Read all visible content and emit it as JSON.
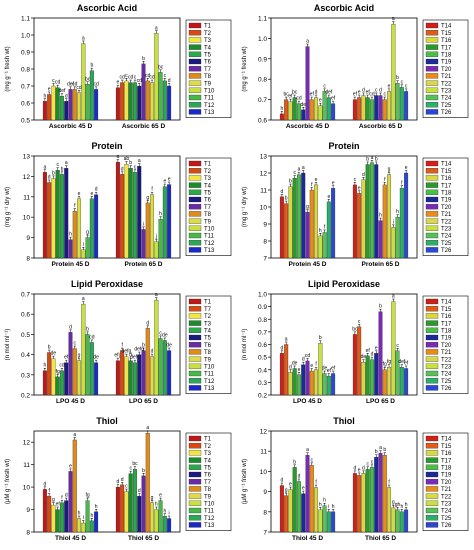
{
  "palette_a": [
    "#c01818",
    "#d84a10",
    "#f3e640",
    "#1a8c2a",
    "#2aa84a",
    "#1a1a80",
    "#6a2aa8",
    "#e08a1a",
    "#dcdc48",
    "#c8e040",
    "#48b848",
    "#2aa858",
    "#1a2ac8"
  ],
  "palette_b": [
    "#d02018",
    "#e05a18",
    "#d8d840",
    "#2a9a2a",
    "#48c048",
    "#1a2a9a",
    "#7a2ab8",
    "#ea8a18",
    "#d8d848",
    "#c8e040",
    "#58c058",
    "#2ab068",
    "#2a48d0"
  ],
  "chart_data": [
    {
      "type": "bar",
      "title": "Ascorbic Acid",
      "ylabel": "(mg g⁻¹ fresh wt)",
      "ylim": [
        0.5,
        1.1
      ],
      "yticks": [
        "0.5",
        "0.6",
        "0.7",
        "0.8",
        "0.9",
        "1.0",
        "1.1"
      ],
      "grid": false,
      "legend": "top-right",
      "categories": [
        "Ascorbic 45 D",
        "Ascorbic 65 D"
      ],
      "series": [
        {
          "name": "T1",
          "values": [
            0.61,
            0.69
          ]
        },
        {
          "name": "T2",
          "values": [
            0.65,
            0.72
          ]
        },
        {
          "name": "T3",
          "values": [
            0.7,
            0.73
          ]
        },
        {
          "name": "T4",
          "values": [
            0.69,
            0.72
          ]
        },
        {
          "name": "T5",
          "values": [
            0.64,
            0.72
          ]
        },
        {
          "name": "T6",
          "values": [
            0.61,
            0.7
          ]
        },
        {
          "name": "T7",
          "values": [
            0.68,
            0.83
          ]
        },
        {
          "name": "T8",
          "values": [
            0.68,
            0.73
          ]
        },
        {
          "name": "T9",
          "values": [
            0.66,
            0.72
          ]
        },
        {
          "name": "T10",
          "values": [
            0.95,
            1.01
          ]
        },
        {
          "name": "T11",
          "values": [
            0.71,
            0.78
          ]
        },
        {
          "name": "T12",
          "values": [
            0.79,
            0.73
          ]
        },
        {
          "name": "T13",
          "values": [
            0.68,
            0.7
          ]
        }
      ],
      "letters": [
        [
          "h",
          "e",
          "c",
          "cd",
          "def",
          "d",
          "def",
          "cd",
          "cd",
          "a",
          "bc",
          "b",
          "cd"
        ],
        [
          "e",
          "cd",
          "c",
          "cd",
          "c",
          "cd",
          "b",
          "cd",
          "cd",
          "a",
          "bc",
          "c",
          "d"
        ]
      ]
    },
    {
      "type": "bar",
      "title": "Ascorbic Acid",
      "ylabel": "(mg g⁻¹ fresh wt)",
      "ylim": [
        0.6,
        1.1
      ],
      "yticks": [
        "0.6",
        "0.7",
        "0.8",
        "0.9",
        "1.0",
        "1.1"
      ],
      "grid": false,
      "legend": "top-right",
      "categories": [
        "Ascorbic 45 D",
        "Ascorbic 65 D"
      ],
      "series": [
        {
          "name": "T14",
          "values": [
            0.63,
            0.7
          ]
        },
        {
          "name": "T15",
          "values": [
            0.7,
            0.71
          ]
        },
        {
          "name": "T16",
          "values": [
            0.69,
            0.72
          ]
        },
        {
          "name": "T17",
          "values": [
            0.71,
            0.71
          ]
        },
        {
          "name": "T18",
          "values": [
            0.68,
            0.7
          ]
        },
        {
          "name": "T19",
          "values": [
            0.65,
            0.72
          ]
        },
        {
          "name": "T20",
          "values": [
            0.96,
            0.72
          ]
        },
        {
          "name": "T21",
          "values": [
            0.7,
            0.7
          ]
        },
        {
          "name": "T22",
          "values": [
            0.71,
            0.74
          ]
        },
        {
          "name": "T23",
          "values": [
            0.67,
            1.07
          ]
        },
        {
          "name": "T24",
          "values": [
            0.74,
            0.78
          ]
        },
        {
          "name": "T25",
          "values": [
            0.71,
            0.76
          ]
        },
        {
          "name": "T26",
          "values": [
            0.68,
            0.74
          ]
        }
      ],
      "letters": [
        [
          "h",
          "bc",
          "ef",
          "bc",
          "cd",
          "de",
          "a",
          "ef",
          "d",
          "e",
          "c",
          "def",
          "ef"
        ],
        [
          "ef",
          "e",
          "d",
          "ef",
          "cd",
          "c",
          "d",
          "c",
          "e",
          "a",
          "b",
          "c",
          "c"
        ]
      ]
    },
    {
      "type": "bar",
      "title": "Protein",
      "ylabel": "(mg g⁻¹ dry wt)",
      "ylim": [
        8,
        13
      ],
      "yticks": [
        "8",
        "9",
        "10",
        "11",
        "12",
        "13"
      ],
      "grid": false,
      "legend": "top-right",
      "categories": [
        "Protein 45 D",
        "Protein 65 D"
      ],
      "series": [
        {
          "name": "T1",
          "values": [
            12.2,
            12.7
          ]
        },
        {
          "name": "T2",
          "values": [
            11.7,
            12.1
          ]
        },
        {
          "name": "T3",
          "values": [
            11.9,
            12.6
          ]
        },
        {
          "name": "T4",
          "values": [
            12.3,
            12.4
          ]
        },
        {
          "name": "T5",
          "values": [
            12.1,
            12.2
          ]
        },
        {
          "name": "T6",
          "values": [
            12.4,
            12.5
          ]
        },
        {
          "name": "T7",
          "values": [
            8.9,
            9.4
          ]
        },
        {
          "name": "T8",
          "values": [
            10.3,
            10.7
          ]
        },
        {
          "name": "T9",
          "values": [
            10.9,
            11.1
          ]
        },
        {
          "name": "T10",
          "values": [
            8.4,
            8.8
          ]
        },
        {
          "name": "T11",
          "values": [
            9.0,
            9.9
          ]
        },
        {
          "name": "T12",
          "values": [
            10.9,
            11.5
          ]
        },
        {
          "name": "T13",
          "values": [
            11.1,
            11.6
          ]
        }
      ],
      "letters": [
        [
          "a",
          "d",
          "b",
          "c",
          "b",
          "a",
          "h",
          "f",
          "e",
          "i",
          "g",
          "e",
          "d"
        ],
        [
          "a",
          "d",
          "ab",
          "b",
          "c",
          "a",
          "i",
          "g",
          "f",
          "j",
          "h",
          "e",
          "e"
        ]
      ]
    },
    {
      "type": "bar",
      "title": "Protein",
      "ylabel": "(mg g⁻¹ dry wt)",
      "ylim": [
        7,
        13
      ],
      "yticks": [
        "7",
        "8",
        "9",
        "10",
        "11",
        "12",
        "13"
      ],
      "grid": false,
      "legend": "top-right",
      "categories": [
        "Protein 45 D",
        "Protein 65 D"
      ],
      "series": [
        {
          "name": "T14",
          "values": [
            10.6,
            11.3
          ]
        },
        {
          "name": "T15",
          "values": [
            10.2,
            10.8
          ]
        },
        {
          "name": "T16",
          "values": [
            11.2,
            11.6
          ]
        },
        {
          "name": "T17",
          "values": [
            11.7,
            12.5
          ]
        },
        {
          "name": "T18",
          "values": [
            11.9,
            12.6
          ]
        },
        {
          "name": "T19",
          "values": [
            12.0,
            12.5
          ]
        },
        {
          "name": "T20",
          "values": [
            9.7,
            9.2
          ]
        },
        {
          "name": "T21",
          "values": [
            11.0,
            11.3
          ]
        },
        {
          "name": "T22",
          "values": [
            11.3,
            11.9
          ]
        },
        {
          "name": "T23",
          "values": [
            8.3,
            8.8
          ]
        },
        {
          "name": "T24",
          "values": [
            8.5,
            9.4
          ]
        },
        {
          "name": "T25",
          "values": [
            10.3,
            11.1
          ]
        },
        {
          "name": "T26",
          "values": [
            11.1,
            12.0
          ]
        }
      ],
      "letters": [
        [
          "d",
          "b",
          "b",
          "c",
          "a",
          "a",
          "g",
          "f",
          "e",
          "h",
          "f",
          "e",
          "e"
        ],
        [
          "c",
          "e",
          "d",
          "b",
          "a",
          "b",
          "h",
          "f",
          "g",
          "i",
          "h",
          "f",
          "e"
        ]
      ]
    },
    {
      "type": "bar",
      "title": "Lipid Peroxidase",
      "ylabel": "(n mol ml⁻¹)",
      "ylim": [
        0.2,
        0.7
      ],
      "yticks": [
        "0.2",
        "0.3",
        "0.4",
        "0.5",
        "0.6",
        "0.7"
      ],
      "grid": false,
      "legend": "top-right",
      "categories": [
        "LPO 45 D",
        "LPO 65 D"
      ],
      "series": [
        {
          "name": "T1",
          "values": [
            0.32,
            0.37
          ]
        },
        {
          "name": "T7",
          "values": [
            0.41,
            0.42
          ]
        },
        {
          "name": "T2",
          "values": [
            0.38,
            0.39
          ]
        },
        {
          "name": "T3",
          "values": [
            0.29,
            0.37
          ]
        },
        {
          "name": "T4",
          "values": [
            0.32,
            0.36
          ]
        },
        {
          "name": "T5",
          "values": [
            0.36,
            0.4
          ]
        },
        {
          "name": "T6",
          "values": [
            0.51,
            0.42
          ]
        },
        {
          "name": "T8",
          "values": [
            0.43,
            0.53
          ]
        },
        {
          "name": "T9",
          "values": [
            0.37,
            0.39
          ]
        },
        {
          "name": "T10",
          "values": [
            0.65,
            0.67
          ]
        },
        {
          "name": "T11",
          "values": [
            0.5,
            0.48
          ]
        },
        {
          "name": "T12",
          "values": [
            0.46,
            0.47
          ]
        },
        {
          "name": "T13",
          "values": [
            0.36,
            0.42
          ]
        }
      ],
      "letters": [
        [
          "h",
          "b",
          "de",
          "fg",
          "cd",
          "ef",
          "d",
          "c",
          "g",
          "a",
          "b",
          "cd",
          "de"
        ],
        [
          "efg",
          "f",
          "defg",
          "d",
          "defg",
          "defg",
          "b",
          "d",
          "d",
          "a",
          "c",
          "de",
          "de"
        ]
      ]
    },
    {
      "type": "bar",
      "title": "Lipid Peroxidase",
      "ylabel": "(n mol ml⁻¹)",
      "ylim": [
        0.2,
        1.0
      ],
      "yticks": [
        "0.2",
        "0.3",
        "0.4",
        "0.5",
        "0.6",
        "0.7",
        "0.8",
        "0.9",
        "1.0"
      ],
      "grid": false,
      "legend": "top-right",
      "categories": [
        "LPO 45 D",
        "LPO 65 D"
      ],
      "series": [
        {
          "name": "T14",
          "values": [
            0.53,
            0.68
          ]
        },
        {
          "name": "T15",
          "values": [
            0.6,
            0.74
          ]
        },
        {
          "name": "T16",
          "values": [
            0.38,
            0.46
          ]
        },
        {
          "name": "T17",
          "values": [
            0.41,
            0.51
          ]
        },
        {
          "name": "T18",
          "values": [
            0.36,
            0.48
          ]
        },
        {
          "name": "T19",
          "values": [
            0.44,
            0.53
          ]
        },
        {
          "name": "T20",
          "values": [
            0.47,
            0.86
          ]
        },
        {
          "name": "T21",
          "values": [
            0.39,
            0.4
          ]
        },
        {
          "name": "T22",
          "values": [
            0.4,
            0.42
          ]
        },
        {
          "name": "T23",
          "values": [
            0.61,
            0.94
          ]
        },
        {
          "name": "T24",
          "values": [
            0.37,
            0.55
          ]
        },
        {
          "name": "T25",
          "values": [
            0.35,
            0.42
          ]
        },
        {
          "name": "T26",
          "values": [
            0.37,
            0.41
          ]
        }
      ],
      "letters": [
        [
          "d",
          "a",
          "d",
          "de",
          "e",
          "d",
          "cd",
          "e",
          "f",
          "b",
          "de",
          "ef",
          "ef"
        ],
        [
          "bc",
          "c",
          "de",
          "ef",
          "d",
          "e",
          "b",
          "fg",
          "fg",
          "a",
          "c",
          "def",
          "ef"
        ]
      ]
    },
    {
      "type": "bar",
      "title": "Thiol",
      "ylabel": "(μM g⁻¹ fresh wt)",
      "ylim": [
        8,
        12.5
      ],
      "yticks": [
        "8",
        "9",
        "10",
        "11",
        "12"
      ],
      "grid": false,
      "legend": "top-right",
      "categories": [
        "Thiol 45 D",
        "Thiol 65 D"
      ],
      "series": [
        {
          "name": "T1",
          "values": [
            9.9,
            10.0
          ]
        },
        {
          "name": "T2",
          "values": [
            9.6,
            10.1
          ]
        },
        {
          "name": "T3",
          "values": [
            9.2,
            9.8
          ]
        },
        {
          "name": "T4",
          "values": [
            9.0,
            10.6
          ]
        },
        {
          "name": "T5",
          "values": [
            9.3,
            10.8
          ]
        },
        {
          "name": "T6",
          "values": [
            9.4,
            9.6
          ]
        },
        {
          "name": "T7",
          "values": [
            10.7,
            10.5
          ]
        },
        {
          "name": "T8",
          "values": [
            12.1,
            12.4
          ]
        },
        {
          "name": "T9",
          "values": [
            8.6,
            9.3
          ]
        },
        {
          "name": "T10",
          "values": [
            8.4,
            9.0
          ]
        },
        {
          "name": "T11",
          "values": [
            9.4,
            9.4
          ]
        },
        {
          "name": "T12",
          "values": [
            8.5,
            8.7
          ]
        },
        {
          "name": "T13",
          "values": [
            8.9,
            8.6
          ]
        }
      ],
      "letters": [
        [
          "d",
          "f",
          "g",
          "ef",
          "f",
          "d",
          "e",
          "a",
          "h",
          "i",
          "fg",
          "h",
          "h"
        ],
        [
          "d",
          "d",
          "c",
          "c",
          "bc",
          "d",
          "b",
          "a",
          "g",
          "h",
          "e",
          "h",
          "i"
        ]
      ]
    },
    {
      "type": "bar",
      "title": "Thiol",
      "ylabel": "(μM g⁻¹ fresh wt)",
      "ylim": [
        7,
        12
      ],
      "yticks": [
        "7",
        "8",
        "9",
        "10",
        "11",
        "12"
      ],
      "grid": false,
      "legend": "top-right",
      "categories": [
        "Thiol 45 D",
        "Thiol 65 D"
      ],
      "series": [
        {
          "name": "T14",
          "values": [
            9.3,
            9.9
          ]
        },
        {
          "name": "T15",
          "values": [
            8.8,
            9.8
          ]
        },
        {
          "name": "T16",
          "values": [
            9.1,
            9.9
          ]
        },
        {
          "name": "T17",
          "values": [
            10.2,
            10.1
          ]
        },
        {
          "name": "T18",
          "values": [
            9.5,
            10.2
          ]
        },
        {
          "name": "T19",
          "values": [
            8.9,
            10.7
          ]
        },
        {
          "name": "T20",
          "values": [
            10.8,
            10.9
          ]
        },
        {
          "name": "T21",
          "values": [
            10.3,
            10.8
          ]
        },
        {
          "name": "T22",
          "values": [
            9.2,
            9.2
          ]
        },
        {
          "name": "T23",
          "values": [
            8.1,
            8.2
          ]
        },
        {
          "name": "T24",
          "values": [
            8.3,
            8.1
          ]
        },
        {
          "name": "T25",
          "values": [
            8.0,
            8.0
          ]
        },
        {
          "name": "T26",
          "values": [
            8.0,
            8.1
          ]
        }
      ],
      "letters": [
        [
          "d",
          "g",
          "e",
          "b",
          "d",
          "e",
          "a",
          "c",
          "f",
          "h",
          "h",
          "i",
          "h"
        ],
        [
          "d",
          "e",
          "d",
          "c",
          "c",
          "b",
          "a",
          "b",
          "f",
          "g",
          "gh",
          "h",
          "h"
        ]
      ]
    }
  ]
}
